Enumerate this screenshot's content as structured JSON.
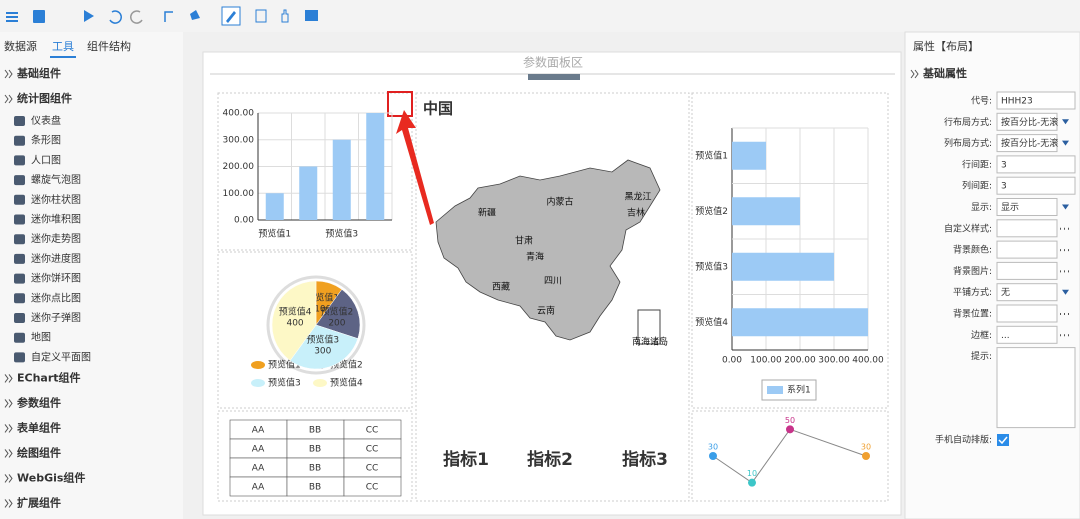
{
  "left_panel": {
    "tabs": [
      "数据源",
      "工具",
      "组件结构"
    ],
    "groups": [
      {
        "title": "基础组件"
      },
      {
        "title": "统计图组件",
        "items": [
          "仪表盘",
          "条形图",
          "人口图",
          "螺旋气泡图",
          "迷你柱状图",
          "迷你堆积图",
          "迷你走势图",
          "迷你进度图",
          "迷你饼环图",
          "迷你点比图",
          "迷你子弹图",
          "地图",
          "自定义平面图"
        ]
      },
      {
        "title": "EChart组件"
      },
      {
        "title": "参数组件"
      },
      {
        "title": "表单组件"
      },
      {
        "title": "绘图组件"
      },
      {
        "title": "WebGis组件"
      },
      {
        "title": "扩展组件"
      }
    ]
  },
  "center": {
    "param_area": "参数面板区",
    "bar_chart": {
      "type": "bar",
      "categories": [
        "预览值1",
        null,
        "预览值3",
        null
      ],
      "values": [
        100,
        200,
        300,
        400
      ],
      "color": "#9ccaf5",
      "ylim": [
        0,
        400
      ],
      "yticks": [
        {
          "value": 0,
          "label": "0.00"
        },
        {
          "value": 100,
          "label": "100.00"
        },
        {
          "value": 200,
          "label": "200.00"
        },
        {
          "value": 300,
          "label": "300.00"
        },
        {
          "value": 400,
          "label": "400.00"
        }
      ],
      "grid": true
    },
    "pie_chart": {
      "type": "pie",
      "categories": [
        "预览值1",
        "预览值2",
        "预览值3",
        "预览值4"
      ],
      "values": [
        100,
        200,
        300,
        400
      ],
      "colors": [
        "#f0a020",
        "#5d6385",
        "#c8f0fa",
        "#fdf8c6"
      ]
    },
    "map": {
      "title": "中国",
      "labels": [
        "新疆",
        "西藏",
        "青海",
        "内蒙古",
        "黑龙江",
        "吉林",
        "甘肃",
        "四川",
        "云南",
        "南海诸岛"
      ]
    },
    "indicators": [
      "指标1",
      "指标2",
      "指标3"
    ],
    "hbar_chart": {
      "type": "hbar",
      "categories": [
        "预览值1",
        "预览值2",
        "预览值3",
        "预览值4"
      ],
      "values": [
        100,
        200,
        300,
        400
      ],
      "color": "#9ccaf5",
      "series_name": "系列1",
      "xlim": [
        0,
        400
      ],
      "xticks": [
        {
          "value": 0,
          "label": "0.00"
        },
        {
          "value": 100,
          "label": "100.00"
        },
        {
          "value": 200,
          "label": "200.00"
        },
        {
          "value": 300,
          "label": "300.00"
        },
        {
          "value": 400,
          "label": "400.00"
        }
      ],
      "grid": true
    },
    "table": {
      "rows": [
        [
          "AA",
          "BB",
          "CC"
        ],
        [
          "AA",
          "BB",
          "CC"
        ],
        [
          "AA",
          "BB",
          "CC"
        ],
        [
          "AA",
          "BB",
          "CC"
        ]
      ]
    },
    "line_chart": {
      "type": "line",
      "values": [
        30,
        10,
        50,
        30
      ],
      "ylim": [
        0,
        60
      ],
      "colors": [
        "#3a9ee8",
        "#3cc6c8",
        "#c8338a",
        "#f0a030"
      ]
    }
  },
  "right_panel": {
    "title": "属性【布局】",
    "section": "基础属性",
    "properties": [
      {
        "label": "代号:",
        "value": "HHH23",
        "control": "text"
      },
      {
        "label": "行布局方式:",
        "value": "按百分比-无滚",
        "control": "select"
      },
      {
        "label": "列布局方式:",
        "value": "按百分比-无滚",
        "control": "select"
      },
      {
        "label": "行间距:",
        "value": "3",
        "control": "text"
      },
      {
        "label": "列间距:",
        "value": "3",
        "control": "text"
      },
      {
        "label": "显示:",
        "value": "显示",
        "control": "select"
      },
      {
        "label": "自定义样式:",
        "control": "dots"
      },
      {
        "label": "背景颜色:",
        "control": "dots"
      },
      {
        "label": "背景图片:",
        "control": "dots"
      },
      {
        "label": "平铺方式:",
        "value": "无",
        "control": "select"
      },
      {
        "label": "背景位置:",
        "control": "dots"
      },
      {
        "label": "边框:",
        "value": "...",
        "control": "dots"
      },
      {
        "label": "提示:",
        "control": "area"
      }
    ],
    "mobile": "手机自动排版:"
  }
}
